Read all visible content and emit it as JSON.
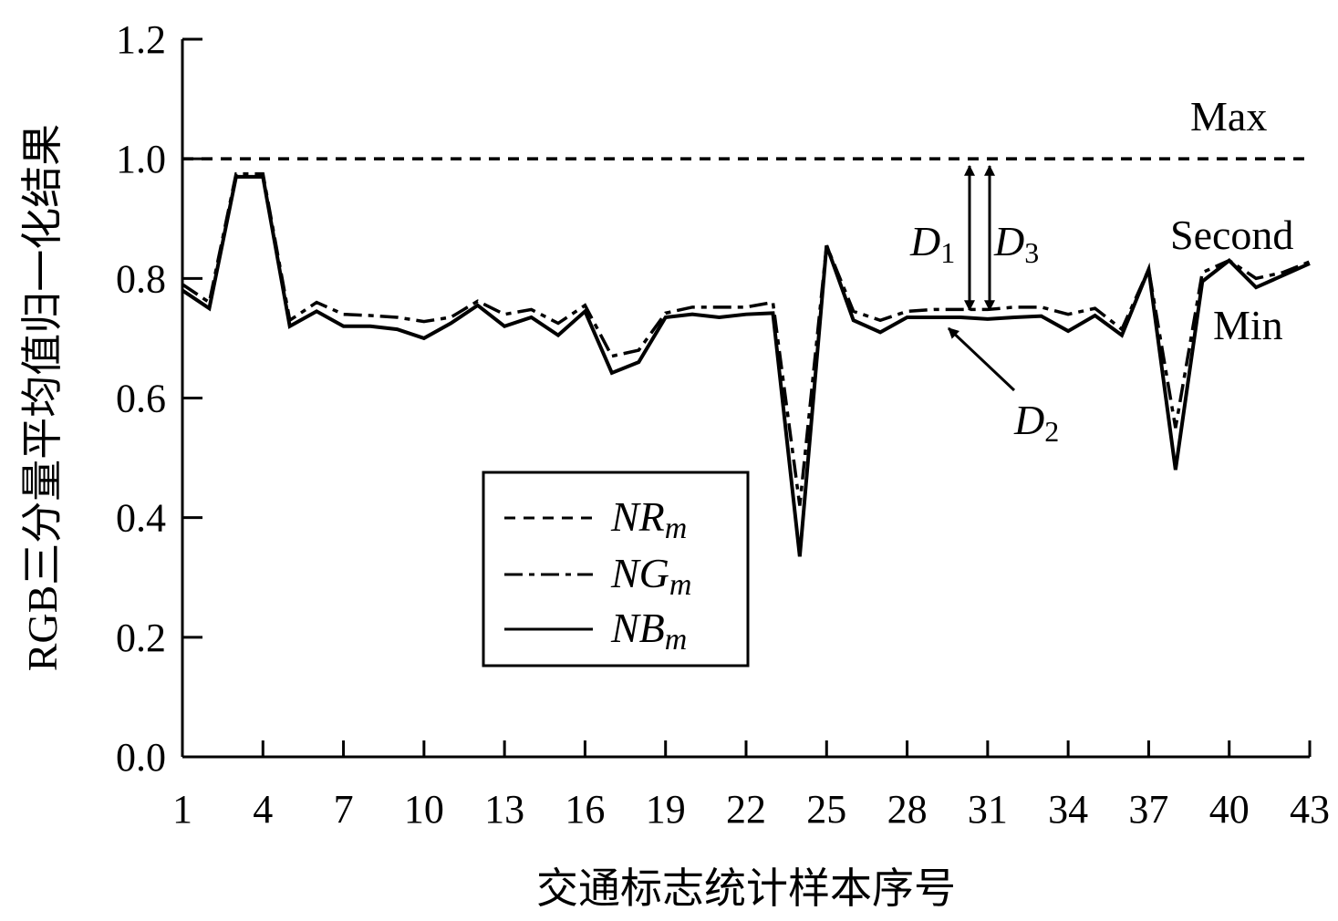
{
  "chart_data": {
    "type": "line",
    "xlabel": "交通标志统计样本序号",
    "ylabel": "RGB三分量平均值归一化结果",
    "xlim": [
      1,
      43
    ],
    "ylim": [
      0,
      1.2
    ],
    "x_ticks": [
      "1",
      "4",
      "7",
      "10",
      "13",
      "16",
      "19",
      "22",
      "25",
      "28",
      "31",
      "34",
      "37",
      "40",
      "43"
    ],
    "y_ticks": [
      "0.0",
      "0.2",
      "0.4",
      "0.6",
      "0.8",
      "1.0",
      "1.2"
    ],
    "grid": false,
    "legend_position": "bottom-left",
    "x": [
      1,
      2,
      3,
      4,
      5,
      6,
      7,
      8,
      9,
      10,
      11,
      12,
      13,
      14,
      15,
      16,
      17,
      18,
      19,
      20,
      21,
      22,
      23,
      24,
      25,
      26,
      27,
      28,
      29,
      30,
      31,
      32,
      33,
      34,
      35,
      36,
      37,
      38,
      39,
      40,
      41,
      42,
      43
    ],
    "series": [
      {
        "name": "NRm",
        "label_main": "NR",
        "label_sub": "m",
        "style": "dashed",
        "values": [
          1,
          1,
          1,
          1,
          1,
          1,
          1,
          1,
          1,
          1,
          1,
          1,
          1,
          1,
          1,
          1,
          1,
          1,
          1,
          1,
          1,
          1,
          1,
          1,
          1,
          1,
          1,
          1,
          1,
          1,
          1,
          1,
          1,
          1,
          1,
          1,
          1,
          1,
          1,
          1,
          1,
          1,
          1
        ]
      },
      {
        "name": "NGm",
        "label_main": "NG",
        "label_sub": "m",
        "style": "dashdot",
        "values": [
          0.79,
          0.76,
          0.975,
          0.975,
          0.73,
          0.76,
          0.74,
          0.738,
          0.735,
          0.728,
          0.735,
          0.762,
          0.74,
          0.748,
          0.725,
          0.755,
          0.67,
          0.68,
          0.742,
          0.752,
          0.752,
          0.752,
          0.76,
          0.42,
          0.855,
          0.745,
          0.73,
          0.745,
          0.748,
          0.748,
          0.748,
          0.752,
          0.752,
          0.74,
          0.75,
          0.715,
          0.815,
          0.55,
          0.81,
          0.83,
          0.8,
          0.81,
          0.828
        ]
      },
      {
        "name": "NBm",
        "label_main": "NB",
        "label_sub": "m",
        "style": "solid",
        "values": [
          0.78,
          0.75,
          0.97,
          0.97,
          0.72,
          0.745,
          0.72,
          0.72,
          0.715,
          0.7,
          0.725,
          0.755,
          0.72,
          0.735,
          0.705,
          0.745,
          0.642,
          0.66,
          0.735,
          0.74,
          0.735,
          0.74,
          0.742,
          0.335,
          0.855,
          0.73,
          0.71,
          0.735,
          0.735,
          0.735,
          0.732,
          0.735,
          0.737,
          0.712,
          0.738,
          0.705,
          0.815,
          0.48,
          0.795,
          0.83,
          0.785,
          0.805,
          0.825
        ]
      }
    ],
    "annotations": {
      "max": "Max",
      "second": "Second",
      "min": "Min",
      "d1": {
        "main": "D",
        "sub": "1"
      },
      "d2": {
        "main": "D",
        "sub": "2"
      },
      "d3": {
        "main": "D",
        "sub": "3"
      }
    }
  }
}
